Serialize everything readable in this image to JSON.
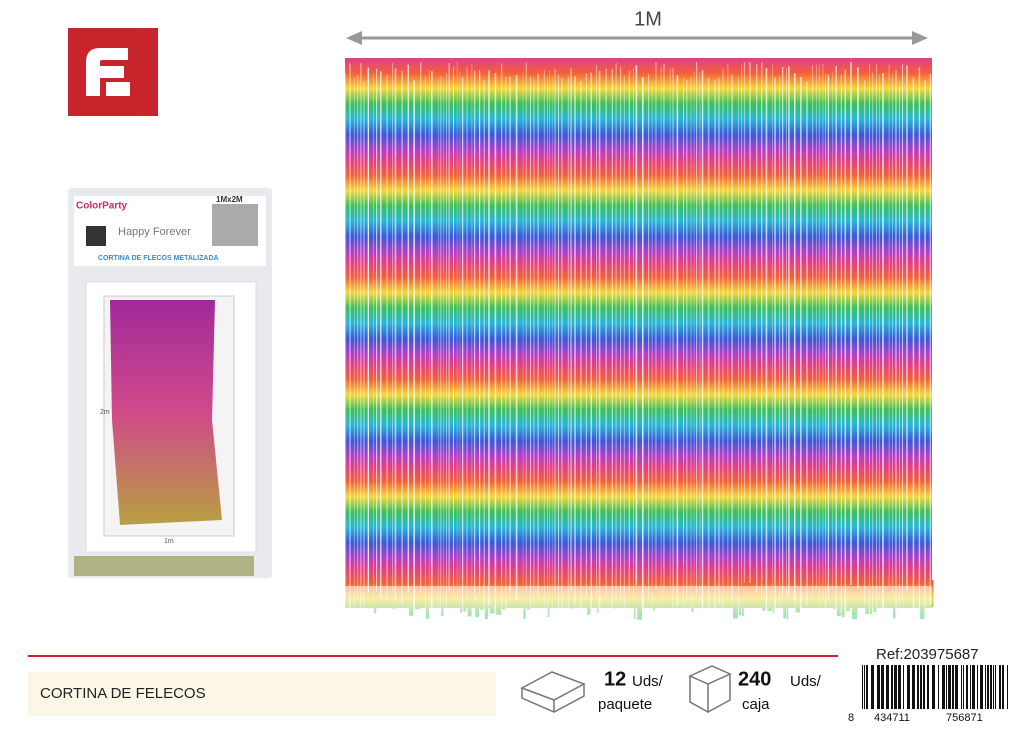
{
  "dimension_label": "1M",
  "package": {
    "brand": "ColorParty",
    "size": "1Mx2M",
    "name": "Happy Forever",
    "subtitle": "CORTINA DE FLECOS METALIZADA",
    "height": "2m",
    "width": "1m"
  },
  "footer": {
    "product_name": "CORTINA DE FELECOS",
    "package_qty": 12,
    "package_unit": "Uds/",
    "package_label": "paquete",
    "box_qty": 240,
    "box_unit": "Uds/",
    "box_label": "caja",
    "ref": "Ref:203975687",
    "barcode": [
      "8",
      "434711",
      "756871"
    ]
  }
}
